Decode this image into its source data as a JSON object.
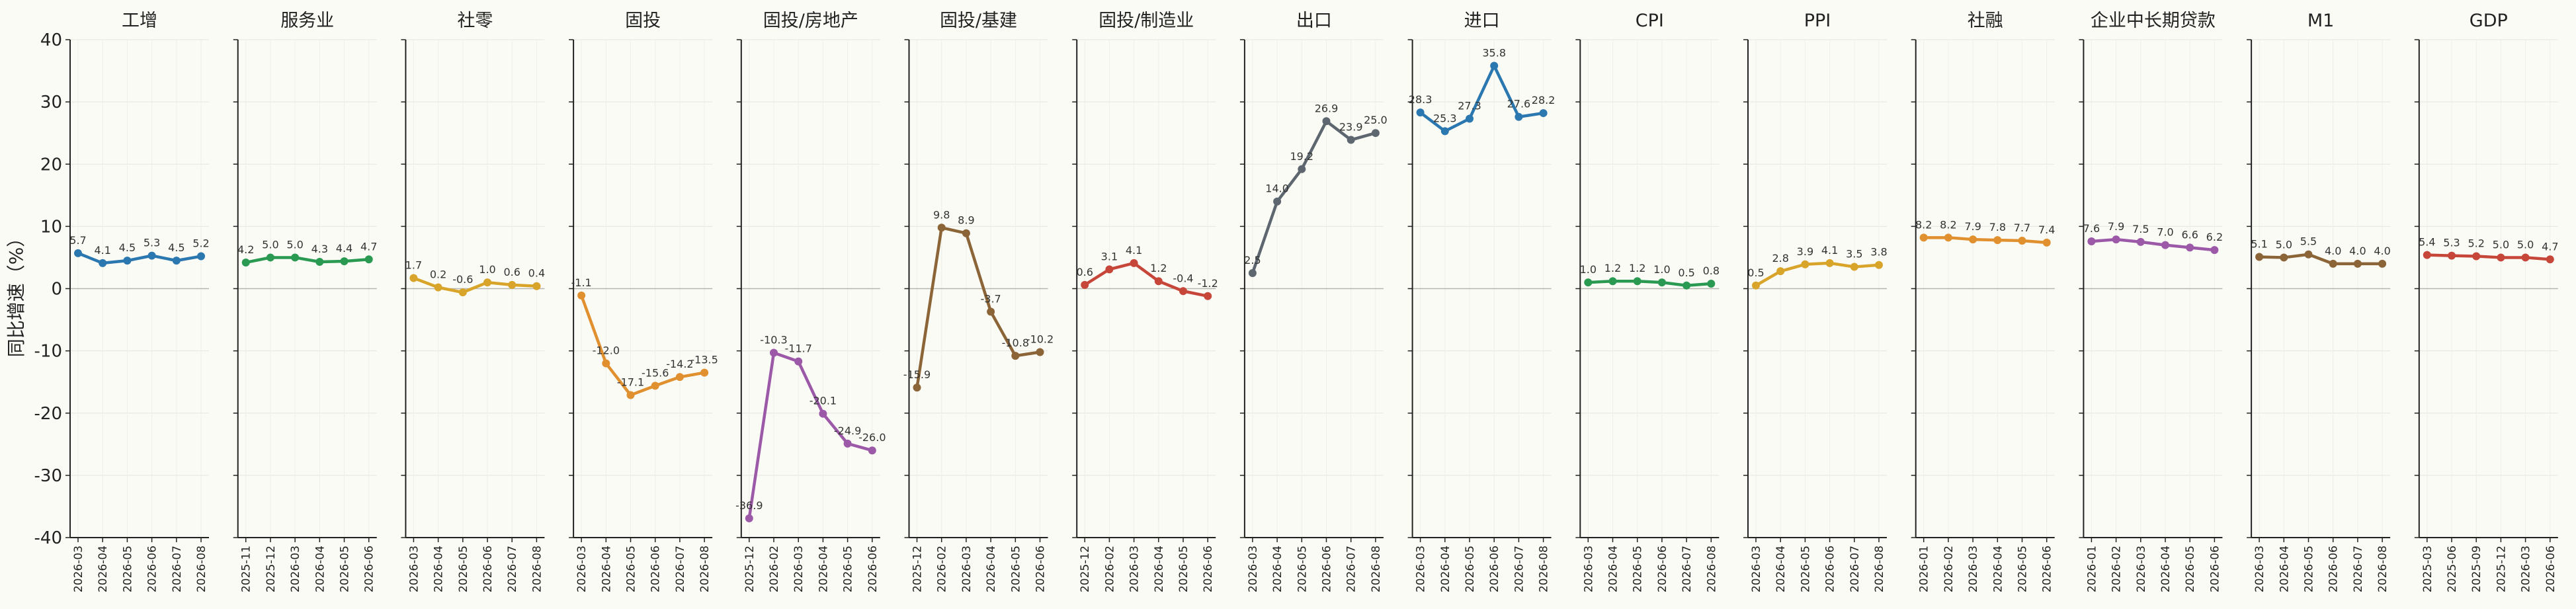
{
  "figure": {
    "ylabel": "同比增速（%）",
    "yticks": [
      40,
      30,
      20,
      10,
      0,
      -10,
      -20,
      -30,
      -40
    ],
    "ylim": [
      -40,
      40
    ]
  },
  "chart_data": [
    {
      "type": "line",
      "title": "工增",
      "color": "#2b77b0",
      "categories": [
        "2026-03",
        "2026-04",
        "2026-05",
        "2026-06",
        "2026-07",
        "2026-08"
      ],
      "values": [
        5.7,
        4.1,
        4.5,
        5.3,
        4.5,
        5.2
      ],
      "labels": [
        "5.7",
        "4.1",
        "4.5",
        "5.3",
        "4.5",
        "5.2"
      ]
    },
    {
      "type": "line",
      "title": "服务业",
      "color": "#2a9a52",
      "categories": [
        "2025-11",
        "2025-12",
        "2026-03",
        "2026-04",
        "2026-05",
        "2026-06"
      ],
      "values": [
        4.2,
        5.0,
        5.0,
        4.3,
        4.4,
        4.7
      ],
      "labels": [
        "4.2",
        "5.0",
        "5.0",
        "4.3",
        "4.4",
        "4.7"
      ]
    },
    {
      "type": "line",
      "title": "社零",
      "color": "#d8a52a",
      "categories": [
        "2026-03",
        "2026-04",
        "2026-05",
        "2026-06",
        "2026-07",
        "2026-08"
      ],
      "values": [
        1.7,
        0.2,
        -0.6,
        1.0,
        0.6,
        0.4
      ],
      "labels": [
        "1.7",
        "0.2",
        "-0.6",
        "1.0",
        "0.6",
        "0.4"
      ]
    },
    {
      "type": "line",
      "title": "固投",
      "color": "#e0902f",
      "categories": [
        "2026-03",
        "2026-04",
        "2026-05",
        "2026-06",
        "2026-07",
        "2026-08"
      ],
      "values": [
        -1.1,
        -12.0,
        -17.1,
        -15.6,
        -14.2,
        -13.5
      ],
      "labels": [
        "-1.1",
        "-12.0",
        "-17.1",
        "-15.6",
        "-14.2",
        "-13.5"
      ]
    },
    {
      "type": "line",
      "title": "固投/房地产",
      "color": "#9c59a8",
      "categories": [
        "2025-12",
        "2026-02",
        "2026-03",
        "2026-04",
        "2026-05",
        "2026-06"
      ],
      "values": [
        -36.9,
        -10.3,
        -11.7,
        -20.1,
        -24.9,
        -26.0
      ],
      "labels": [
        "-36.9",
        "-10.3",
        "-11.7",
        "-20.1",
        "-24.9",
        "-26.0"
      ]
    },
    {
      "type": "line",
      "title": "固投/基建",
      "color": "#8b6437",
      "categories": [
        "2025-12",
        "2026-02",
        "2026-03",
        "2026-04",
        "2026-05",
        "2026-06"
      ],
      "values": [
        -15.9,
        9.8,
        8.9,
        -3.7,
        -10.8,
        -10.2
      ],
      "labels": [
        "-15.9",
        "9.8",
        "8.9",
        "-3.7",
        "-10.8",
        "-10.2"
      ]
    },
    {
      "type": "line",
      "title": "固投/制造业",
      "color": "#c7463a",
      "categories": [
        "2025-12",
        "2026-02",
        "2026-03",
        "2026-04",
        "2026-05",
        "2026-06"
      ],
      "values": [
        0.6,
        3.1,
        4.1,
        1.2,
        -0.4,
        -1.2
      ],
      "labels": [
        "0.6",
        "3.1",
        "4.1",
        "1.2",
        "-0.4",
        "-1.2"
      ]
    },
    {
      "type": "line",
      "title": "出口",
      "color": "#5e6770",
      "categories": [
        "2026-03",
        "2026-04",
        "2026-05",
        "2026-06",
        "2026-07",
        "2026-08"
      ],
      "values": [
        2.5,
        14.0,
        19.2,
        26.9,
        23.9,
        25.0
      ],
      "labels": [
        "2.5",
        "14.0",
        "19.2",
        "26.9",
        "23.9",
        "25.0"
      ]
    },
    {
      "type": "line",
      "title": "进口",
      "color": "#2b77b0",
      "categories": [
        "2026-03",
        "2026-04",
        "2026-05",
        "2026-06",
        "2026-07",
        "2026-08"
      ],
      "values": [
        28.3,
        25.3,
        27.3,
        35.8,
        27.6,
        28.2
      ],
      "labels": [
        "28.3",
        "25.3",
        "27.3",
        "35.8",
        "27.6",
        "28.2"
      ]
    },
    {
      "type": "line",
      "title": "CPI",
      "color": "#2a9a52",
      "categories": [
        "2026-03",
        "2026-04",
        "2026-05",
        "2026-06",
        "2026-07",
        "2026-08"
      ],
      "values": [
        1.0,
        1.2,
        1.2,
        1.0,
        0.5,
        0.8
      ],
      "labels": [
        "1.0",
        "1.2",
        "1.2",
        "1.0",
        "0.5",
        "0.8"
      ]
    },
    {
      "type": "line",
      "title": "PPI",
      "color": "#d8a52a",
      "categories": [
        "2026-03",
        "2026-04",
        "2026-05",
        "2026-06",
        "2026-07",
        "2026-08"
      ],
      "values": [
        0.5,
        2.8,
        3.9,
        4.1,
        3.5,
        3.8
      ],
      "labels": [
        "0.5",
        "2.8",
        "3.9",
        "4.1",
        "3.5",
        "3.8"
      ]
    },
    {
      "type": "line",
      "title": "社融",
      "color": "#e0902f",
      "categories": [
        "2026-01",
        "2026-02",
        "2026-03",
        "2026-04",
        "2026-05",
        "2026-06"
      ],
      "values": [
        8.2,
        8.2,
        7.9,
        7.8,
        7.7,
        7.4
      ],
      "labels": [
        "8.2",
        "8.2",
        "7.9",
        "7.8",
        "7.7",
        "7.4"
      ]
    },
    {
      "type": "line",
      "title": "企业中长期贷款",
      "color": "#9c59a8",
      "categories": [
        "2026-01",
        "2026-02",
        "2026-03",
        "2026-04",
        "2026-05",
        "2026-06"
      ],
      "values": [
        7.6,
        7.9,
        7.5,
        7.0,
        6.6,
        6.2
      ],
      "labels": [
        "7.6",
        "7.9",
        "7.5",
        "7.0",
        "6.6",
        "6.2"
      ]
    },
    {
      "type": "line",
      "title": "M1",
      "color": "#8b6437",
      "categories": [
        "2026-03",
        "2026-04",
        "2026-05",
        "2026-06",
        "2026-07",
        "2026-08"
      ],
      "values": [
        5.1,
        5.0,
        5.5,
        4.0,
        4.0,
        4.0
      ],
      "labels": [
        "5.1",
        "5.0",
        "5.5",
        "4.0",
        "4.0",
        "4.0"
      ]
    },
    {
      "type": "line",
      "title": "GDP",
      "color": "#c7463a",
      "categories": [
        "2025-03",
        "2025-06",
        "2025-09",
        "2025-12",
        "2026-03",
        "2026-06"
      ],
      "values": [
        5.4,
        5.3,
        5.2,
        5.0,
        5.0,
        4.7
      ],
      "labels": [
        "5.4",
        "5.3",
        "5.2",
        "5.0",
        "5.0",
        "4.7"
      ]
    }
  ]
}
